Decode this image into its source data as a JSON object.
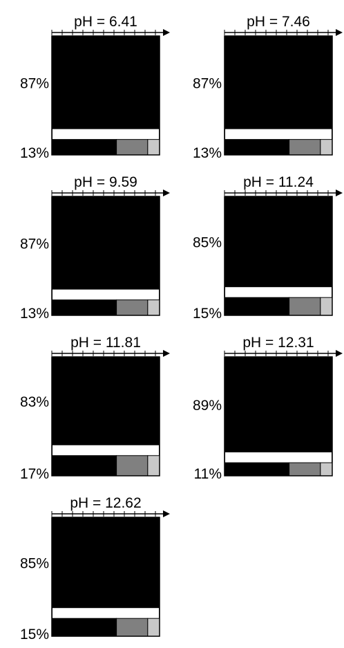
{
  "chart_data": [
    {
      "type": "bar",
      "title": "pH = 6.41",
      "segments": [
        {
          "label": "87%",
          "fraction": 0.87
        },
        {
          "label": "13%",
          "fraction": 0.13
        }
      ],
      "minor_fractions": [
        0.6,
        0.29,
        0.11
      ]
    },
    {
      "type": "bar",
      "title": "pH = 7.46",
      "segments": [
        {
          "label": "87%",
          "fraction": 0.87
        },
        {
          "label": "13%",
          "fraction": 0.13
        }
      ],
      "minor_fractions": [
        0.6,
        0.29,
        0.11
      ]
    },
    {
      "type": "bar",
      "title": "pH = 9.59",
      "segments": [
        {
          "label": "87%",
          "fraction": 0.87
        },
        {
          "label": "13%",
          "fraction": 0.13
        }
      ],
      "minor_fractions": [
        0.6,
        0.29,
        0.11
      ]
    },
    {
      "type": "bar",
      "title": "pH = 11.24",
      "segments": [
        {
          "label": "85%",
          "fraction": 0.85
        },
        {
          "label": "15%",
          "fraction": 0.15
        }
      ],
      "minor_fractions": [
        0.6,
        0.29,
        0.11
      ]
    },
    {
      "type": "bar",
      "title": "pH = 11.81",
      "segments": [
        {
          "label": "83%",
          "fraction": 0.83
        },
        {
          "label": "17%",
          "fraction": 0.17
        }
      ],
      "minor_fractions": [
        0.6,
        0.29,
        0.11
      ]
    },
    {
      "type": "bar",
      "title": "pH = 12.31",
      "segments": [
        {
          "label": "89%",
          "fraction": 0.89
        },
        {
          "label": "11%",
          "fraction": 0.11
        }
      ],
      "minor_fractions": [
        0.6,
        0.29,
        0.11
      ]
    },
    {
      "type": "bar",
      "title": "pH = 12.62",
      "segments": [
        {
          "label": "85%",
          "fraction": 0.85
        },
        {
          "label": "15%",
          "fraction": 0.15
        }
      ],
      "minor_fractions": [
        0.6,
        0.29,
        0.11
      ]
    }
  ],
  "colors": {
    "major": "#000000",
    "minor_1": "#000000",
    "minor_2": "#808080",
    "minor_3": "#c8c8c8",
    "separator": "#ffffff"
  }
}
